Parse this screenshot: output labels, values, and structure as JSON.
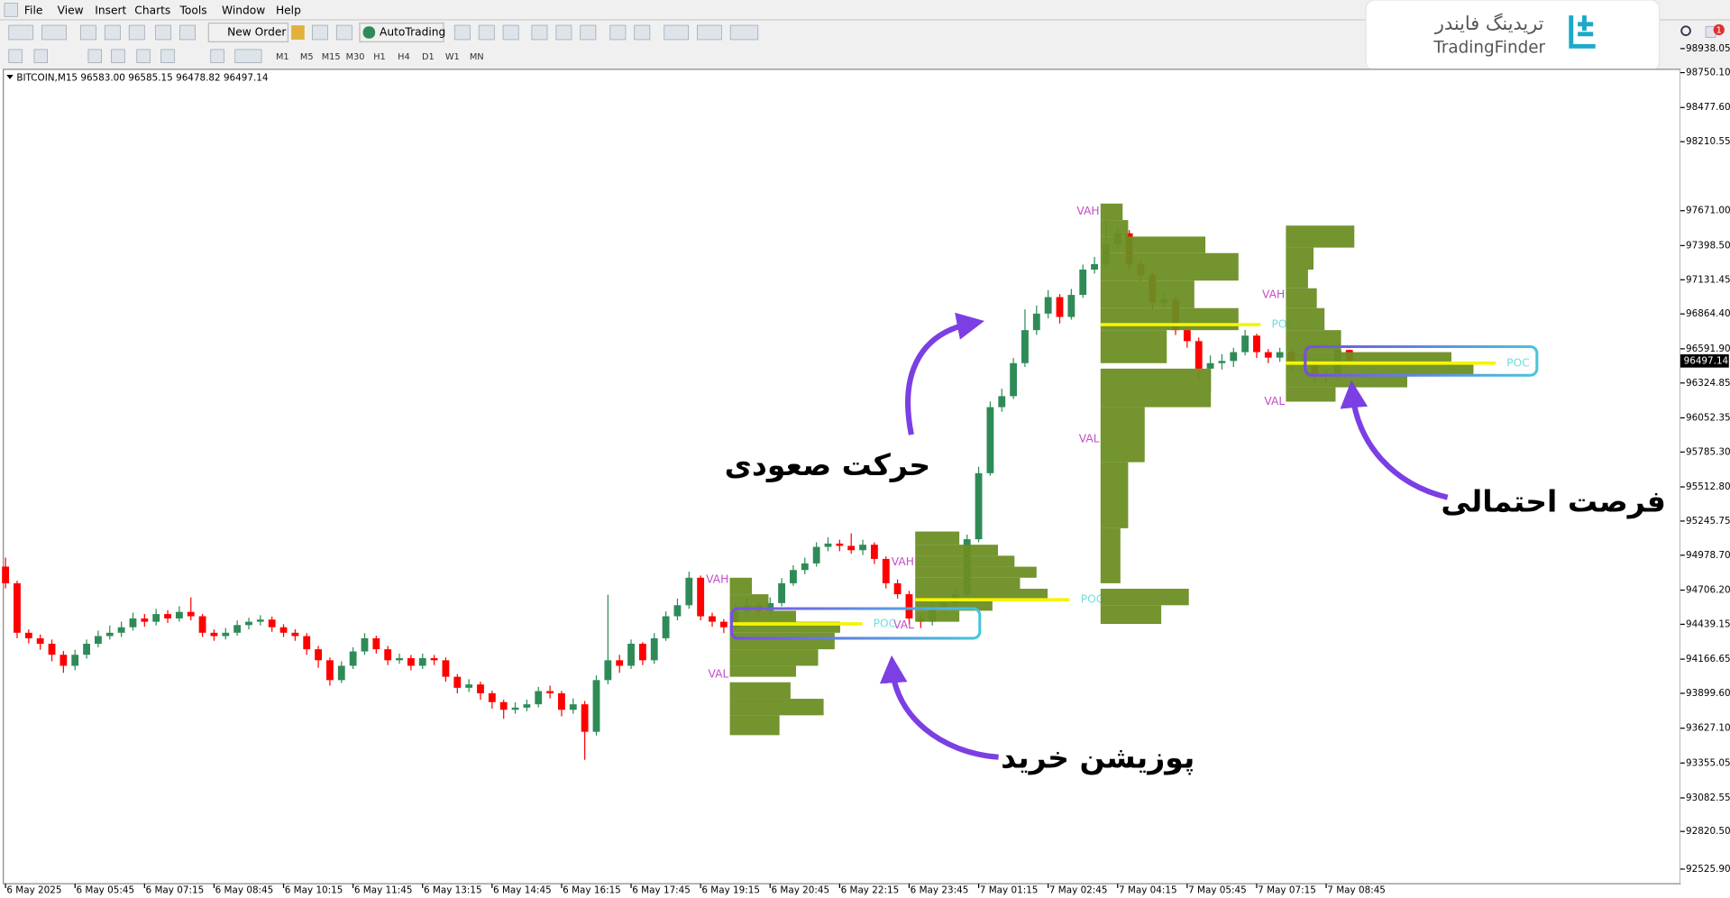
{
  "menu": [
    "File",
    "View",
    "Insert",
    "Charts",
    "Tools",
    "Window",
    "Help"
  ],
  "toolbar": {
    "new_order": "New Order",
    "auto_trading": "AutoTrading",
    "timeframes": [
      "M1",
      "M5",
      "M15",
      "M30",
      "H1",
      "H4",
      "D1",
      "W1",
      "MN"
    ]
  },
  "brand": {
    "persian": "تریدینگ فایندر",
    "latin": "TradingFinder"
  },
  "notification_count": "1",
  "annotations": [
    "حرکت صعودی",
    "پوزیشن خرید",
    "فرصت احتمالی"
  ],
  "chart_data": {
    "type": "candlestick",
    "header": "BITCOIN,M15  96583.00 96585.15 96478.82 96497.14",
    "up_color": "#2e8b57",
    "down_color": "#ff0000",
    "grid": false,
    "ylim": [
      92412,
      98776
    ],
    "yticks": [
      {
        "value": 98750.1,
        "label": "98750.10"
      },
      {
        "value": 98477.6,
        "label": "98477.60"
      },
      98210.55,
      98938.05,
      {
        "value": 97671.0,
        "label": "97671.00"
      },
      {
        "value": 97398.5,
        "label": "97398.50"
      },
      97131.45,
      {
        "value": 96864.4,
        "label": "96864.40"
      },
      {
        "value": 96591.9,
        "label": "96591.90"
      },
      96324.85,
      96052.35,
      {
        "value": 95785.3,
        "label": "95785.30"
      },
      {
        "value": 95512.8,
        "label": "95512.80"
      },
      95245.75,
      {
        "value": 94978.7,
        "label": "94978.70"
      },
      {
        "value": 94706.2,
        "label": "94706.20"
      },
      94439.15,
      94166.65,
      {
        "value": 93899.6,
        "label": "93899.60"
      },
      {
        "value": 93627.1,
        "label": "93627.10"
      },
      93355.05,
      93082.55,
      {
        "value": 92820.5,
        "label": "92820.50"
      },
      {
        "value": 92525.9,
        "label": "92525.90"
      }
    ],
    "last_price": 96497.14,
    "categories": [
      "6 May 2025",
      null,
      null,
      null,
      null,
      null,
      "6 May 05:45",
      null,
      null,
      null,
      null,
      null,
      "6 May 07:15",
      null,
      null,
      null,
      null,
      null,
      "6 May 08:45",
      null,
      null,
      null,
      null,
      null,
      "6 May 10:15",
      null,
      null,
      null,
      null,
      null,
      "6 May 11:45",
      null,
      null,
      null,
      null,
      null,
      "6 May 13:15",
      null,
      null,
      null,
      null,
      null,
      "6 May 14:45",
      null,
      null,
      null,
      null,
      null,
      "6 May 16:15",
      null,
      null,
      null,
      null,
      null,
      "6 May 17:45",
      null,
      null,
      null,
      null,
      null,
      "6 May 19:15",
      null,
      null,
      null,
      null,
      null,
      "6 May 20:45",
      null,
      null,
      null,
      null,
      null,
      "6 May 22:15",
      null,
      null,
      null,
      null,
      null,
      "6 May 23:45",
      null,
      null,
      null,
      null,
      null,
      "7 May 01:15",
      null,
      null,
      null,
      null,
      null,
      "7 May 02:45",
      null,
      null,
      null,
      null,
      null,
      "7 May 04:15",
      null,
      null,
      null,
      null,
      null,
      "7 May 05:45",
      null,
      null,
      null,
      null,
      null,
      "7 May 07:15",
      null,
      null,
      null,
      null,
      null,
      "7 May 08:45",
      null,
      null
    ],
    "open": [
      94890,
      94760,
      94373,
      94330,
      94287,
      94201,
      94115,
      94201,
      94287,
      94347,
      94373,
      94416,
      94485,
      94459,
      94519,
      94485,
      94536,
      94502,
      94373,
      94347,
      94373,
      94433,
      94459,
      94476,
      94416,
      94373,
      94347,
      94244,
      94158,
      94003,
      94115,
      94227,
      94330,
      94244,
      94158,
      94175,
      94115,
      94175,
      94158,
      94029,
      93943,
      93969,
      93900,
      93831,
      93771,
      93788,
      93814,
      93917,
      93900,
      93771,
      93814,
      93599,
      94003,
      94158,
      94115,
      94287,
      94158,
      94330,
      94502,
      94588,
      94803,
      94502,
      94459,
      94416,
      94545,
      94588,
      94545,
      94605,
      94760,
      94863,
      94915,
      95044,
      95070,
      95052,
      95018,
      95061,
      94950,
      94760,
      94674,
      94485,
      94459,
      94562,
      94605,
      94674,
      95104,
      95620,
      96136,
      96222,
      96480,
      96738,
      96867,
      96996,
      96841,
      97013,
      97211,
      97254,
      97409,
      97495,
      97254,
      97168,
      96953,
      96979,
      96738,
      96652,
      96437,
      96480,
      96497,
      96566,
      96695,
      96566,
      96523,
      96566,
      96480,
      96480,
      96394,
      96377,
      96583
    ],
    "high": [
      94960,
      94780,
      94400,
      94360,
      94320,
      94230,
      94240,
      94320,
      94390,
      94430,
      94460,
      94530,
      94520,
      94560,
      94550,
      94580,
      94650,
      94520,
      94400,
      94410,
      94470,
      94490,
      94510,
      94500,
      94440,
      94400,
      94370,
      94270,
      94180,
      94150,
      94260,
      94370,
      94350,
      94270,
      94210,
      94200,
      94210,
      94200,
      94180,
      94050,
      94010,
      93990,
      93920,
      93850,
      93830,
      93850,
      93950,
      93960,
      93920,
      93860,
      93840,
      94040,
      94670,
      94200,
      94320,
      94300,
      94370,
      94540,
      94640,
      94850,
      94820,
      94530,
      94480,
      94590,
      94640,
      94610,
      94650,
      94800,
      94900,
      94960,
      95080,
      95120,
      95100,
      95150,
      95100,
      95080,
      94970,
      94790,
      94700,
      94520,
      94600,
      94650,
      94720,
      95140,
      95670,
      96180,
      96280,
      96520,
      96900,
      96930,
      97050,
      97020,
      97060,
      97250,
      97310,
      97600,
      97540,
      97520,
      97290,
      97190,
      97030,
      97000,
      96770,
      96680,
      96540,
      96550,
      96600,
      96740,
      96710,
      96590,
      96600,
      96590,
      96540,
      96500,
      96430,
      96650,
      96585.15
    ],
    "low": [
      94720,
      94330,
      94290,
      94240,
      94150,
      94060,
      94080,
      94170,
      94260,
      94320,
      94340,
      94390,
      94420,
      94430,
      94450,
      94460,
      94470,
      94340,
      94310,
      94320,
      94350,
      94400,
      94430,
      94380,
      94340,
      94310,
      94200,
      94100,
      93960,
      93980,
      94090,
      94200,
      94210,
      94120,
      94130,
      94080,
      94090,
      94120,
      93990,
      93900,
      93910,
      93850,
      93780,
      93700,
      93740,
      93760,
      93790,
      93860,
      93720,
      93740,
      93380,
      93570,
      93970,
      94060,
      94090,
      94120,
      94130,
      94310,
      94470,
      94560,
      94470,
      94420,
      94370,
      94390,
      94510,
      94500,
      94510,
      94580,
      94740,
      94830,
      94890,
      95010,
      95010,
      94990,
      94980,
      94910,
      94720,
      94640,
      94440,
      94410,
      94430,
      94530,
      94570,
      94650,
      95080,
      95600,
      96100,
      96200,
      96450,
      96700,
      96830,
      96790,
      96820,
      96990,
      97180,
      97230,
      97380,
      97210,
      97120,
      96900,
      96920,
      96700,
      96600,
      96350,
      96250,
      96430,
      96450,
      96540,
      96520,
      96480,
      96490,
      96420,
      96450,
      96330,
      96330,
      96350,
      96478.82
    ],
    "close": [
      94760,
      94373,
      94330,
      94287,
      94201,
      94115,
      94201,
      94287,
      94347,
      94373,
      94416,
      94485,
      94459,
      94519,
      94485,
      94536,
      94502,
      94373,
      94347,
      94373,
      94433,
      94459,
      94476,
      94416,
      94373,
      94347,
      94244,
      94158,
      94003,
      94115,
      94227,
      94330,
      94244,
      94158,
      94175,
      94115,
      94175,
      94158,
      94029,
      93943,
      93969,
      93900,
      93831,
      93771,
      93788,
      93814,
      93917,
      93900,
      93771,
      93814,
      93599,
      94003,
      94158,
      94115,
      94287,
      94158,
      94330,
      94502,
      94588,
      94803,
      94502,
      94459,
      94416,
      94545,
      94588,
      94545,
      94605,
      94760,
      94863,
      94915,
      95044,
      95070,
      95052,
      95018,
      95061,
      94950,
      94760,
      94674,
      94485,
      94459,
      94562,
      94605,
      94674,
      95104,
      95620,
      96136,
      96222,
      96480,
      96738,
      96867,
      96996,
      96841,
      97013,
      97211,
      97254,
      97409,
      97495,
      97254,
      97168,
      96953,
      96979,
      96738,
      96652,
      96437,
      96480,
      96497,
      96566,
      96695,
      96566,
      96523,
      96566,
      96480,
      96480,
      96394,
      96377,
      96583,
      96497.14
    ],
    "profiles": [
      {
        "x": 63,
        "color": "#6b8e23",
        "bins": [
          94803,
          94674,
          94545,
          94459,
          94373,
          94244,
          94115,
          94029,
          93986,
          93857,
          93728,
          93573
        ],
        "volumes": [
          20,
          35,
          60,
          100,
          95,
          80,
          60,
          0,
          55,
          85,
          45
        ],
        "poc": 94442,
        "vah": 94786,
        "val": 94047,
        "poc_label": "POC",
        "vah_label": "VAH",
        "val_label": "VAL"
      },
      {
        "x": 79,
        "color": "#6b8e23",
        "bins": [
          95164,
          95061,
          94975,
          94889,
          94803,
          94717,
          94631,
          94545,
          94459
        ],
        "volumes": [
          40,
          75,
          90,
          110,
          95,
          120,
          70,
          40
        ],
        "poc": 94631,
        "vah": 94923,
        "val": 94433,
        "poc_label": "POC",
        "vah_label": "VAH",
        "val_label": "VAL"
      },
      {
        "x": 95,
        "color": "#6b8e23",
        "bins": [
          97727,
          97598,
          97469,
          97340,
          97125,
          96910,
          96738,
          96480,
          96437,
          96136,
          95706,
          95190,
          94760,
          94717,
          94588,
          94442
        ],
        "volumes": [
          20,
          25,
          95,
          125,
          85,
          125,
          60,
          0,
          100,
          40,
          25,
          18,
          0,
          80,
          55
        ],
        "poc": 96781,
        "vah": 97667,
        "val": 95887,
        "poc_label": "POC",
        "vah_label": "VAH",
        "val_label": "VAL"
      },
      {
        "x": 111,
        "color": "#6b8e23",
        "bins": [
          97555,
          97383,
          97211,
          97065,
          96910,
          96738,
          96566,
          96480,
          96394,
          96291,
          96179
        ],
        "volumes": [
          62,
          25,
          20,
          28,
          35,
          50,
          150,
          170,
          110,
          45
        ],
        "poc": 96480,
        "vah": 97013,
        "val": 96179,
        "poc_label": "POC",
        "vah_label": "VAH",
        "val_label": "VAL"
      }
    ]
  }
}
